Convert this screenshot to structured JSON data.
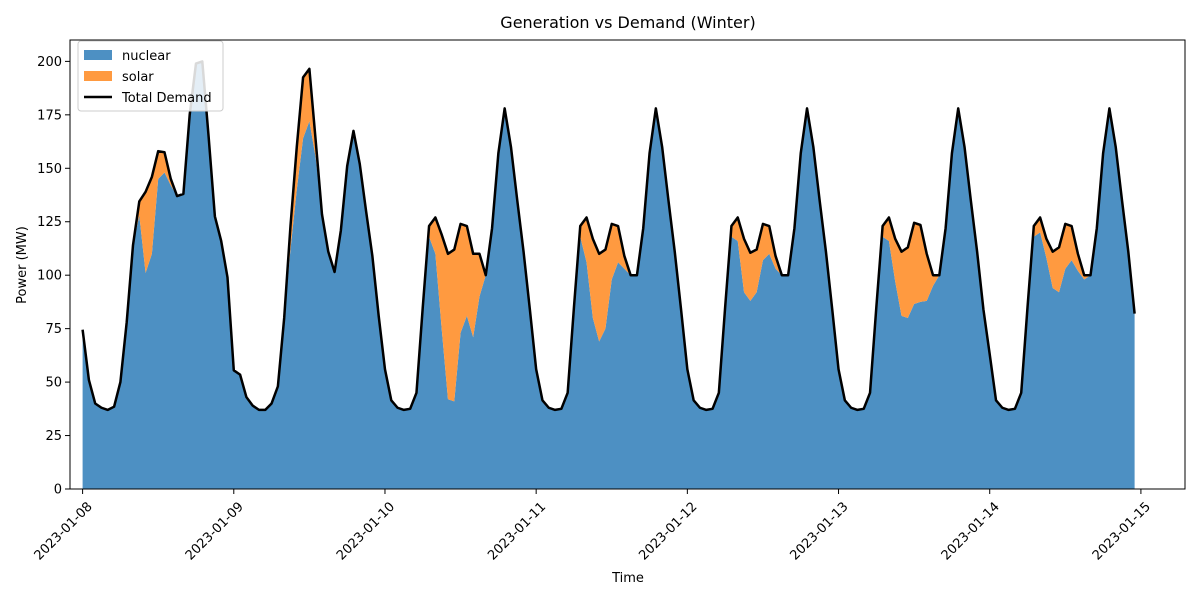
{
  "chart_data": {
    "type": "area",
    "title": "Generation vs Demand (Winter)",
    "xlabel": "Time",
    "ylabel": "Power (MW)",
    "ylim": [
      0,
      210
    ],
    "yticks": [
      0,
      25,
      50,
      75,
      100,
      125,
      150,
      175,
      200
    ],
    "xlim": [
      "2023-01-07T22:00",
      "2023-01-15T07:00"
    ],
    "xticks": [
      "2023-01-08",
      "2023-01-09",
      "2023-01-10",
      "2023-01-11",
      "2023-01-12",
      "2023-01-13",
      "2023-01-14",
      "2023-01-15"
    ],
    "x_start": "2023-01-08T00:00",
    "x_step_hours": 1,
    "stacked": true,
    "legend_position": "top-left",
    "grid": false,
    "series": [
      {
        "name": "nuclear",
        "kind": "area",
        "color": "#4d90c3",
        "values": [
          74.5,
          51.0,
          40.0,
          38.0,
          37.0,
          38.5,
          50.0,
          78.0,
          114.0,
          128.0,
          101.0,
          110.0,
          145.0,
          148.0,
          142.0,
          137.0,
          138.0,
          175.0,
          199.0,
          200.0,
          165.0,
          127.5,
          116.0,
          99.0,
          55.5,
          53.5,
          43.0,
          39.0,
          37.0,
          37.0,
          40.0,
          48.0,
          80.0,
          112.0,
          140.0,
          164.0,
          172.0,
          155.0,
          128.5,
          111.0,
          101.5,
          121.0,
          151.0,
          167.5,
          152.0,
          130.0,
          109.0,
          81.0,
          56.0,
          41.5,
          38.0,
          37.0,
          37.5,
          45.0,
          85.0,
          118.0,
          110.0,
          75.0,
          42.0,
          41.0,
          73.0,
          81.0,
          71.0,
          90.0,
          100.0,
          122.0,
          157.0,
          178.0,
          160.0,
          135.0,
          111.0,
          84.0,
          56.0,
          41.5,
          38.0,
          37.0,
          37.5,
          45.0,
          85.0,
          118.0,
          106.0,
          80.0,
          69.0,
          75.0,
          98.0,
          106.0,
          103.0,
          100.0,
          100.0,
          122.0,
          157.0,
          178.0,
          160.0,
          135.0,
          111.0,
          84.0,
          56.0,
          41.5,
          38.0,
          37.0,
          37.5,
          45.0,
          85.0,
          118.0,
          116.0,
          92.0,
          88.0,
          92.0,
          107.0,
          110.0,
          103.0,
          100.0,
          100.0,
          122.0,
          157.0,
          178.0,
          160.0,
          135.0,
          111.0,
          84.0,
          56.0,
          41.5,
          38.0,
          37.0,
          37.5,
          45.0,
          85.0,
          118.0,
          116.0,
          97.0,
          81.0,
          80.0,
          86.5,
          87.5,
          88.0,
          95.0,
          100.0,
          122.0,
          157.0,
          178.0,
          160.0,
          135.0,
          111.0,
          84.0,
          63.0,
          41.5,
          38.0,
          37.0,
          37.5,
          45.0,
          85.0,
          118.0,
          120.0,
          108.0,
          94.0,
          92.0,
          103.0,
          107.0,
          102.0,
          98.0,
          100.0,
          122.0,
          157.0,
          178.0,
          160.0,
          135.0,
          111.0,
          82.0
        ]
      },
      {
        "name": "solar",
        "kind": "area",
        "color": "#ff9a40",
        "values": [
          0,
          0,
          0,
          0,
          0,
          0,
          0,
          0,
          0,
          6.5,
          38.0,
          36.0,
          13.0,
          9.5,
          3.0,
          0,
          0,
          0,
          0,
          0,
          0,
          0,
          0,
          0,
          0,
          0,
          0,
          0,
          0,
          0,
          0,
          0,
          0,
          11.0,
          20.0,
          28.5,
          24.5,
          8.0,
          0,
          0,
          0,
          0,
          0,
          0,
          0,
          0,
          0,
          0,
          0,
          0,
          0,
          0,
          0,
          0,
          0,
          5.0,
          17.0,
          44.0,
          68.0,
          71.0,
          51.0,
          42.0,
          39.0,
          20.0,
          0,
          0,
          0,
          0,
          0,
          0,
          0,
          0,
          0,
          0,
          0,
          0,
          0,
          0,
          0,
          5.0,
          21.0,
          37.0,
          41.0,
          37.0,
          26.0,
          17.0,
          6.0,
          0,
          0,
          0,
          0,
          0,
          0,
          0,
          0,
          0,
          0,
          0,
          0,
          0,
          0,
          0,
          0,
          5.0,
          11.0,
          25.0,
          22.5,
          20.0,
          17.0,
          13.0,
          6.0,
          0,
          0,
          0,
          0,
          0,
          0,
          0,
          0,
          0,
          0,
          0,
          0,
          0,
          0,
          0,
          0,
          5.0,
          11.0,
          20.0,
          30.0,
          33.0,
          38.0,
          36.0,
          22.0,
          5.0,
          0,
          0,
          0,
          0,
          0,
          0,
          0,
          0,
          0,
          0,
          0,
          0,
          0,
          0,
          0,
          5.0,
          7.0,
          9.0,
          17.0,
          21.0,
          21.0,
          16.0,
          8.0,
          2.0,
          0,
          0,
          0,
          0,
          0,
          0,
          0,
          0
        ]
      },
      {
        "name": "Total Demand",
        "kind": "line",
        "color": "#000000",
        "values": [
          74.5,
          51.0,
          40.0,
          38.0,
          37.0,
          38.5,
          50.0,
          78.0,
          114.0,
          134.5,
          139.0,
          146.0,
          158.0,
          157.5,
          145.0,
          137.0,
          138.0,
          175.0,
          199.0,
          200.0,
          165.0,
          127.5,
          116.0,
          99.0,
          55.5,
          53.5,
          43.0,
          39.0,
          37.0,
          37.0,
          40.0,
          48.0,
          80.0,
          123.0,
          160.0,
          192.5,
          196.5,
          163.0,
          128.5,
          111.0,
          101.5,
          121.0,
          151.0,
          167.5,
          152.0,
          130.0,
          109.0,
          81.0,
          56.0,
          41.5,
          38.0,
          37.0,
          37.5,
          45.0,
          85.0,
          123.0,
          127.0,
          119.0,
          110.0,
          112.0,
          124.0,
          123.0,
          110.0,
          110.0,
          100.0,
          122.0,
          157.0,
          178.0,
          160.0,
          135.0,
          111.0,
          84.0,
          56.0,
          41.5,
          38.0,
          37.0,
          37.5,
          45.0,
          85.0,
          123.0,
          127.0,
          117.0,
          110.0,
          112.0,
          124.0,
          123.0,
          109.0,
          100.0,
          100.0,
          122.0,
          157.0,
          178.0,
          160.0,
          135.0,
          111.0,
          84.0,
          56.0,
          41.5,
          38.0,
          37.0,
          37.5,
          45.0,
          85.0,
          123.0,
          127.0,
          117.0,
          110.5,
          112.0,
          124.0,
          123.0,
          109.0,
          100.0,
          100.0,
          122.0,
          157.0,
          178.0,
          160.0,
          135.0,
          111.0,
          84.0,
          56.0,
          41.5,
          38.0,
          37.0,
          37.5,
          45.0,
          85.0,
          123.0,
          127.0,
          117.0,
          111.0,
          113.0,
          124.5,
          123.5,
          110.0,
          100.0,
          100.0,
          122.0,
          157.0,
          178.0,
          160.0,
          135.0,
          111.0,
          84.0,
          63.0,
          41.5,
          38.0,
          37.0,
          37.5,
          45.0,
          85.0,
          123.0,
          127.0,
          117.0,
          111.0,
          113.0,
          124.0,
          123.0,
          110.0,
          100.0,
          100.0,
          122.0,
          157.0,
          178.0,
          160.0,
          135.0,
          111.0,
          82.0
        ]
      }
    ]
  }
}
